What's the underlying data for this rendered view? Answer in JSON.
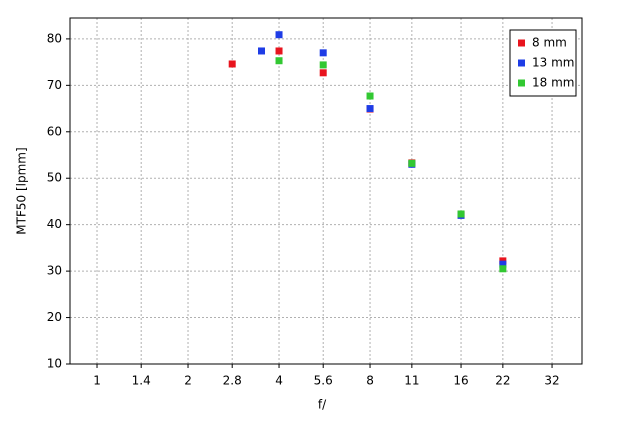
{
  "chart_data": {
    "type": "scatter",
    "xlabel": "f/",
    "ylabel": "MTF50 [lpmm]",
    "xscale": "log",
    "xlim": [
      0.814,
      40.2
    ],
    "xticks": [
      1,
      1.4,
      2,
      2.8,
      4,
      5.6,
      8,
      11,
      16,
      22,
      32
    ],
    "ylim": [
      10,
      84.5
    ],
    "yticks": [
      10,
      20,
      30,
      40,
      50,
      60,
      70,
      80
    ],
    "grid": true,
    "legend": "upper right",
    "series": [
      {
        "name": "8 mm",
        "color": "#e8141e",
        "x": [
          2.8,
          4,
          5.6,
          8,
          11,
          16,
          22
        ],
        "values": [
          74.6,
          77.4,
          72.7,
          64.9,
          53.3,
          42.2,
          32.2
        ]
      },
      {
        "name": "13 mm",
        "color": "#1e3ce6",
        "x": [
          3.5,
          4,
          5.6,
          8,
          11,
          16,
          22
        ],
        "values": [
          77.4,
          80.9,
          77,
          65,
          53,
          42,
          31.5
        ]
      },
      {
        "name": "18 mm",
        "color": "#32c832",
        "x": [
          4,
          5.6,
          8,
          11,
          16,
          22
        ],
        "values": [
          75.3,
          74.4,
          67.7,
          53.2,
          42.3,
          30.5
        ]
      }
    ]
  }
}
